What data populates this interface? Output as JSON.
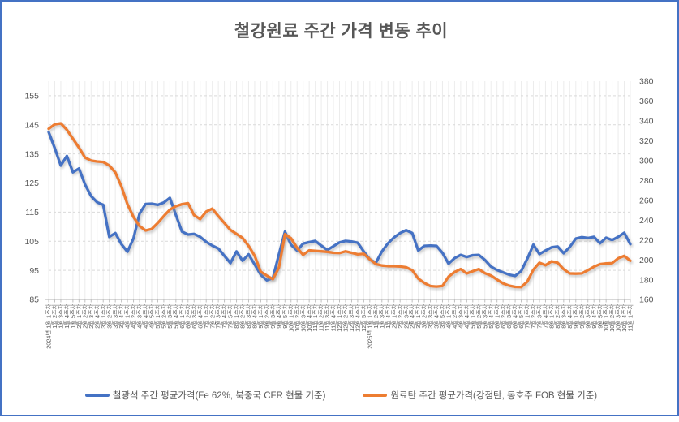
{
  "title": "철강원료 주간 가격 변동 추이",
  "frame": {
    "border_color": "#4472C4",
    "background": "#FFFFFF"
  },
  "colors": {
    "iron_ore_line": "#4472C4",
    "coking_coal_line": "#ED7D31",
    "gridline": "#D9D9D9",
    "vertical_gridline": "#ECECEC",
    "axis_line": "#BFBFBF",
    "tick_label": "#595959"
  },
  "chart_data": {
    "type": "line",
    "title": "철강원료 주간 가격 변동 추이",
    "legend_position": "bottom",
    "grid": {
      "horizontal": "dashed",
      "vertical": "per-category"
    },
    "left_axis": {
      "min": 85,
      "max": 160,
      "ticks": [
        155,
        145,
        135,
        125,
        115,
        105,
        95,
        85
      ]
    },
    "right_axis": {
      "min": 160,
      "max": 380,
      "ticks": [
        380,
        360,
        340,
        320,
        300,
        280,
        260,
        240,
        220,
        200,
        180,
        160
      ]
    },
    "categories": [
      "2024년 1월 1주차",
      "1월 2주차",
      "1월 3주차",
      "1월 4주차",
      "1월 5주차",
      "2월 1주차",
      "2월 2주차",
      "2월 3주차",
      "2월 4주차",
      "3월 1주차",
      "3월 2주차",
      "3월 3주차",
      "3월 4주차",
      "4월 1주차",
      "4월 2주차",
      "4월 3주차",
      "4월 4주차",
      "4월 5주차",
      "5월 1주차",
      "5월 2주차",
      "5월 3주차",
      "5월 4주차",
      "6월 1주차",
      "6월 2주차",
      "6월 3주차",
      "6월 4주차",
      "7월 1주차",
      "7월 2주차",
      "7월 3주차",
      "7월 4주차",
      "7월 5주차",
      "8월 1주차",
      "8월 2주차",
      "8월 3주차",
      "8월 4주차",
      "9월 1주차",
      "9월 2주차",
      "9월 3주차",
      "9월 4주차",
      "9월 5주차",
      "10월 1주차",
      "10월 2주차",
      "10월 3주차",
      "10월 4주차",
      "11월 1주차",
      "11월 2주차",
      "11월 3주차",
      "11월 4주차",
      "12월 1주차",
      "12월 2주차",
      "12월 3주차",
      "12월 4주차",
      "12월 5주차",
      "2025년 1월 1주차",
      "1월 2주차",
      "1월 3주차",
      "1월 4주차",
      "2월 1주차",
      "2월 2주차",
      "2월 3주차",
      "2월 4주차",
      "3월 1주차",
      "3월 2주차",
      "3월 3주차",
      "3월 4주차",
      "3월 5주차",
      "4월 1주차",
      "4월 2주차",
      "4월 3주차",
      "4월 4주차",
      "5월 1주차",
      "5월 2주차",
      "5월 3주차",
      "5월 4주차",
      "6월 1주차",
      "6월 2주차",
      "6월 3주차",
      "6월 4주차",
      "6월 5주차",
      "7월 1주차",
      "7월 2주차",
      "7월 3주차",
      "7월 4주차",
      "8월 1주차",
      "8월 2주차",
      "8월 3주차",
      "8월 4주차",
      "9월 1주차",
      "9월 2주차",
      "9월 3주차",
      "9월 4주차",
      "9월 5주차",
      "10월 1주차",
      "10월 2주차",
      "10월 3주차",
      "10월 4주차",
      "11월 1주차"
    ],
    "series": [
      {
        "name": "철광석 주간 평균가격(Fe 62%, 북중국 CFR 현물 기준)",
        "axis": "left",
        "color": "#4472C4",
        "values": [
          142.5,
          137,
          131,
          134.3,
          128.7,
          130,
          124.5,
          120.5,
          118.4,
          117.5,
          106.5,
          107.8,
          104,
          101.4,
          106,
          114.5,
          117.8,
          117.9,
          117.5,
          118.3,
          119.9,
          114,
          108.3,
          107.3,
          107.5,
          106.5,
          104.8,
          103.5,
          102.5,
          100,
          97.5,
          101.5,
          98.3,
          100.5,
          97,
          93.5,
          91.6,
          92.3,
          100.5,
          108.3,
          103.8,
          101.8,
          104.2,
          104.7,
          105.1,
          103.5,
          102,
          103.3,
          104.6,
          105.1,
          104.9,
          104.5,
          101.5,
          98.8,
          97.6,
          101.5,
          104.3,
          106.3,
          107.8,
          108.8,
          107.8,
          101.8,
          103.4,
          103.5,
          103.4,
          101,
          97.3,
          99.2,
          100.3,
          99.6,
          100.2,
          100.3,
          98.6,
          96.3,
          95.1,
          94.3,
          93.5,
          93.1,
          94.8,
          99,
          103.8,
          100.6,
          101.8,
          102.9,
          103.2,
          100.9,
          103,
          105.9,
          106.4,
          106.1,
          106.5,
          104.3,
          106.2,
          105.4,
          106.5,
          107.9,
          104
        ]
      },
      {
        "name": "원료탄 주간 평균가격(강점탄, 동호주 FOB 현물 기준)",
        "axis": "right",
        "color": "#ED7D31",
        "values": [
          332,
          336.5,
          337.5,
          331,
          322,
          313,
          303,
          300,
          299,
          298.5,
          295,
          288,
          274,
          256,
          243,
          234,
          229.5,
          231,
          237,
          244,
          250.5,
          254,
          256,
          257,
          245,
          241,
          248.5,
          251.5,
          244,
          237,
          230,
          226,
          222,
          214,
          204,
          188,
          184,
          180.5,
          192,
          225.7,
          221.6,
          212,
          205,
          209.5,
          209,
          208.5,
          208,
          207,
          206.8,
          208.5,
          207,
          205.5,
          206,
          200.5,
          195.7,
          194.2,
          193.6,
          193.6,
          193.2,
          192.4,
          189.5,
          181,
          176.6,
          173.5,
          173,
          173.6,
          183,
          187.6,
          190.6,
          186.2,
          188.5,
          190.6,
          186.5,
          184.1,
          180,
          176.2,
          173.9,
          172.7,
          172.5,
          178,
          190,
          197,
          194.5,
          198.4,
          197,
          190.5,
          186.2,
          186,
          186.3,
          189.5,
          193,
          195.6,
          196.3,
          196.6,
          201.5,
          203.9,
          199
        ]
      }
    ]
  },
  "legend": {
    "items": [
      {
        "label": "철광석 주간 평균가격(Fe 62%, 북중국 CFR 현물 기준)",
        "color": "#4472C4"
      },
      {
        "label": "원료탄 주간 평균가격(강점탄, 동호주 FOB 현물 기준)",
        "color": "#ED7D31"
      }
    ]
  }
}
